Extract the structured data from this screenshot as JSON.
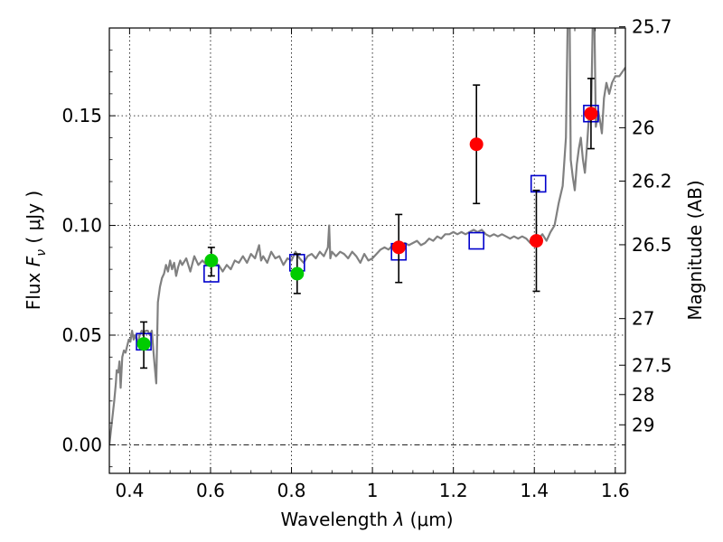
{
  "chart_data": {
    "type": "scatter",
    "xlabel": "Wavelength  λ (μm)",
    "ylabel": "Flux  F_ν  ( μJy )",
    "ylabel_parts": {
      "pre": "Flux  ",
      "var": "F",
      "sub": "ν",
      "unit": "  ( μJy )"
    },
    "xlabel_parts": {
      "pre": "Wavelength  ",
      "var": "λ",
      "unit": " (μm)"
    },
    "y2label": "Magnitude (AB)",
    "xlim": [
      0.35,
      1.625
    ],
    "ylim": [
      -0.013,
      0.19
    ],
    "grid": true,
    "x_ticks": [
      0.4,
      0.6,
      0.8,
      1.0,
      1.2,
      1.4,
      1.6
    ],
    "x_tick_labels": [
      "0.4",
      "0.6",
      "0.8",
      "1",
      "1.2",
      "1.4",
      "1.6"
    ],
    "y_ticks": [
      0.0,
      0.05,
      0.1,
      0.15
    ],
    "y_tick_labels": [
      "0.00",
      "0.05",
      "0.10",
      "0.15"
    ],
    "mag_ticks": [
      25.7,
      26,
      26.2,
      26.5,
      27,
      27.5,
      28,
      29
    ],
    "mag_tick_labels": [
      "25.7",
      "26",
      "26.2",
      "26.5",
      "27",
      "27.5",
      "28",
      "29"
    ],
    "zero_line": 0.0,
    "series": [
      {
        "kind": "model-spectrum",
        "color": "#808080",
        "points": [
          [
            0.35,
            0.0
          ],
          [
            0.356,
            0.01
          ],
          [
            0.362,
            0.02
          ],
          [
            0.366,
            0.028
          ],
          [
            0.368,
            0.034
          ],
          [
            0.372,
            0.033
          ],
          [
            0.375,
            0.038
          ],
          [
            0.378,
            0.026
          ],
          [
            0.382,
            0.04
          ],
          [
            0.386,
            0.043
          ],
          [
            0.39,
            0.042
          ],
          [
            0.394,
            0.045
          ],
          [
            0.398,
            0.048
          ],
          [
            0.402,
            0.047
          ],
          [
            0.406,
            0.052
          ],
          [
            0.41,
            0.048
          ],
          [
            0.415,
            0.05
          ],
          [
            0.42,
            0.046
          ],
          [
            0.425,
            0.05
          ],
          [
            0.43,
            0.052
          ],
          [
            0.435,
            0.051
          ],
          [
            0.44,
            0.052
          ],
          [
            0.445,
            0.052
          ],
          [
            0.45,
            0.05
          ],
          [
            0.455,
            0.052
          ],
          [
            0.46,
            0.04
          ],
          [
            0.466,
            0.028
          ],
          [
            0.47,
            0.065
          ],
          [
            0.475,
            0.072
          ],
          [
            0.48,
            0.076
          ],
          [
            0.485,
            0.078
          ],
          [
            0.49,
            0.082
          ],
          [
            0.495,
            0.079
          ],
          [
            0.5,
            0.084
          ],
          [
            0.505,
            0.08
          ],
          [
            0.51,
            0.083
          ],
          [
            0.515,
            0.077
          ],
          [
            0.52,
            0.081
          ],
          [
            0.525,
            0.084
          ],
          [
            0.53,
            0.082
          ],
          [
            0.54,
            0.085
          ],
          [
            0.55,
            0.079
          ],
          [
            0.56,
            0.086
          ],
          [
            0.57,
            0.082
          ],
          [
            0.58,
            0.084
          ],
          [
            0.59,
            0.082
          ],
          [
            0.6,
            0.084
          ],
          [
            0.61,
            0.083
          ],
          [
            0.62,
            0.082
          ],
          [
            0.63,
            0.079
          ],
          [
            0.64,
            0.082
          ],
          [
            0.65,
            0.08
          ],
          [
            0.66,
            0.084
          ],
          [
            0.67,
            0.083
          ],
          [
            0.68,
            0.086
          ],
          [
            0.69,
            0.083
          ],
          [
            0.7,
            0.087
          ],
          [
            0.71,
            0.085
          ],
          [
            0.72,
            0.091
          ],
          [
            0.725,
            0.084
          ],
          [
            0.73,
            0.086
          ],
          [
            0.74,
            0.083
          ],
          [
            0.75,
            0.088
          ],
          [
            0.76,
            0.085
          ],
          [
            0.77,
            0.086
          ],
          [
            0.78,
            0.082
          ],
          [
            0.79,
            0.085
          ],
          [
            0.8,
            0.084
          ],
          [
            0.81,
            0.088
          ],
          [
            0.82,
            0.085
          ],
          [
            0.83,
            0.083
          ],
          [
            0.84,
            0.086
          ],
          [
            0.85,
            0.087
          ],
          [
            0.86,
            0.085
          ],
          [
            0.87,
            0.088
          ],
          [
            0.88,
            0.086
          ],
          [
            0.89,
            0.09
          ],
          [
            0.893,
            0.1
          ],
          [
            0.896,
            0.085
          ],
          [
            0.9,
            0.088
          ],
          [
            0.91,
            0.086
          ],
          [
            0.92,
            0.088
          ],
          [
            0.93,
            0.087
          ],
          [
            0.94,
            0.085
          ],
          [
            0.95,
            0.088
          ],
          [
            0.96,
            0.086
          ],
          [
            0.97,
            0.083
          ],
          [
            0.98,
            0.087
          ],
          [
            0.99,
            0.084
          ],
          [
            1.0,
            0.085
          ],
          [
            1.01,
            0.087
          ],
          [
            1.02,
            0.089
          ],
          [
            1.03,
            0.09
          ],
          [
            1.04,
            0.089
          ],
          [
            1.05,
            0.091
          ],
          [
            1.06,
            0.09
          ],
          [
            1.07,
            0.091
          ],
          [
            1.08,
            0.092
          ],
          [
            1.09,
            0.091
          ],
          [
            1.1,
            0.092
          ],
          [
            1.11,
            0.093
          ],
          [
            1.12,
            0.091
          ],
          [
            1.13,
            0.092
          ],
          [
            1.14,
            0.094
          ],
          [
            1.15,
            0.093
          ],
          [
            1.16,
            0.095
          ],
          [
            1.17,
            0.094
          ],
          [
            1.18,
            0.096
          ],
          [
            1.19,
            0.096
          ],
          [
            1.2,
            0.097
          ],
          [
            1.21,
            0.096
          ],
          [
            1.22,
            0.097
          ],
          [
            1.23,
            0.096
          ],
          [
            1.24,
            0.097
          ],
          [
            1.25,
            0.098
          ],
          [
            1.26,
            0.097
          ],
          [
            1.27,
            0.098
          ],
          [
            1.28,
            0.096
          ],
          [
            1.29,
            0.095
          ],
          [
            1.3,
            0.096
          ],
          [
            1.31,
            0.095
          ],
          [
            1.32,
            0.096
          ],
          [
            1.33,
            0.095
          ],
          [
            1.34,
            0.094
          ],
          [
            1.35,
            0.095
          ],
          [
            1.36,
            0.094
          ],
          [
            1.37,
            0.095
          ],
          [
            1.38,
            0.094
          ],
          [
            1.39,
            0.092
          ],
          [
            1.4,
            0.093
          ],
          [
            1.41,
            0.094
          ],
          [
            1.42,
            0.096
          ],
          [
            1.43,
            0.093
          ],
          [
            1.44,
            0.097
          ],
          [
            1.45,
            0.1
          ],
          [
            1.46,
            0.11
          ],
          [
            1.47,
            0.118
          ],
          [
            1.478,
            0.14
          ],
          [
            1.483,
            0.2
          ],
          [
            1.487,
            0.2
          ],
          [
            1.49,
            0.13
          ],
          [
            1.495,
            0.122
          ],
          [
            1.5,
            0.116
          ],
          [
            1.505,
            0.128
          ],
          [
            1.51,
            0.135
          ],
          [
            1.515,
            0.14
          ],
          [
            1.52,
            0.13
          ],
          [
            1.525,
            0.124
          ],
          [
            1.53,
            0.136
          ],
          [
            1.535,
            0.15
          ],
          [
            1.54,
            0.147
          ],
          [
            1.545,
            0.2
          ],
          [
            1.548,
            0.2
          ],
          [
            1.552,
            0.145
          ],
          [
            1.558,
            0.152
          ],
          [
            1.562,
            0.148
          ],
          [
            1.567,
            0.142
          ],
          [
            1.572,
            0.158
          ],
          [
            1.578,
            0.165
          ],
          [
            1.585,
            0.16
          ],
          [
            1.592,
            0.165
          ],
          [
            1.6,
            0.168
          ],
          [
            1.61,
            0.168
          ],
          [
            1.625,
            0.172
          ]
        ]
      },
      {
        "kind": "model-magnitude-boxes",
        "color": "#0000cc",
        "points": [
          [
            0.435,
            0.047
          ],
          [
            0.602,
            0.078
          ],
          [
            0.814,
            0.083
          ],
          [
            1.065,
            0.088
          ],
          [
            1.257,
            0.093
          ],
          [
            1.41,
            0.119
          ],
          [
            1.54,
            0.151
          ]
        ]
      },
      {
        "kind": "observed-green",
        "color": "#00cc00",
        "points": [
          {
            "x": 0.435,
            "y": 0.046,
            "lo": 0.035,
            "hi": 0.056
          },
          {
            "x": 0.602,
            "y": 0.084,
            "lo": 0.077,
            "hi": 0.09
          },
          {
            "x": 0.814,
            "y": 0.078,
            "lo": 0.069,
            "hi": 0.087
          }
        ]
      },
      {
        "kind": "observed-red",
        "color": "#ff0000",
        "points": [
          {
            "x": 1.065,
            "y": 0.09,
            "lo": 0.074,
            "hi": 0.105
          },
          {
            "x": 1.257,
            "y": 0.137,
            "lo": 0.11,
            "hi": 0.164
          },
          {
            "x": 1.405,
            "y": 0.093,
            "lo": 0.07,
            "hi": 0.116
          },
          {
            "x": 1.54,
            "y": 0.151,
            "lo": 0.135,
            "hi": 0.167
          }
        ]
      }
    ]
  }
}
